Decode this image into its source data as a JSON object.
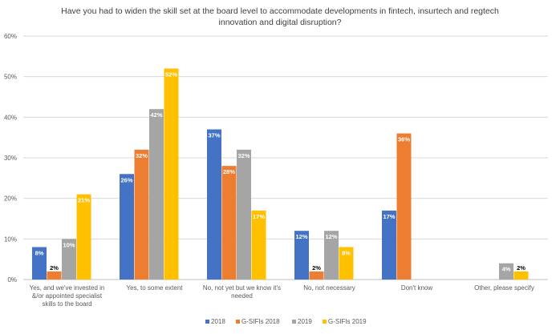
{
  "chart_data": {
    "type": "bar",
    "title_lines": [
      "Have you had to widen the skill set at the board level to accommodate developments in fintech, insurtech and regtech",
      "innovation and digital disruption?"
    ],
    "xlabel": "",
    "ylabel": "",
    "ylim": [
      0,
      60
    ],
    "yticks": [
      0,
      10,
      20,
      30,
      40,
      50,
      60
    ],
    "ytick_labels": [
      "0%",
      "10%",
      "20%",
      "30%",
      "40%",
      "50%",
      "60%"
    ],
    "grid": true,
    "legend_position": "bottom",
    "categories": [
      [
        "Yes, and we've invested in",
        "&/or appointed specialist",
        "skills to the board"
      ],
      [
        "Yes, to some extent"
      ],
      [
        "No, not yet but we know it's",
        "needed"
      ],
      [
        "No, not necessary"
      ],
      [
        "Don't know"
      ],
      [
        "Other, please specify"
      ]
    ],
    "series": [
      {
        "name": "2018",
        "color": "#4472c4",
        "values": [
          8,
          26,
          37,
          12,
          17,
          null
        ],
        "labels": [
          "8%",
          "26%",
          "37%",
          "12%",
          "17%",
          null
        ]
      },
      {
        "name": "G-SIFIs 2018",
        "color": "#ed7d31",
        "values": [
          2,
          32,
          28,
          2,
          36,
          null
        ],
        "labels": [
          "2%",
          "32%",
          "28%",
          "2%",
          "36%",
          null
        ]
      },
      {
        "name": "2019",
        "color": "#a5a5a5",
        "values": [
          10,
          42,
          32,
          12,
          null,
          4
        ],
        "labels": [
          "10%",
          "42%",
          "32%",
          "12%",
          null,
          "4%"
        ]
      },
      {
        "name": "G-SIFIs 2019",
        "color": "#ffc000",
        "values": [
          21,
          52,
          17,
          8,
          null,
          2
        ],
        "labels": [
          "21%",
          "52%",
          "17%",
          "8%",
          null,
          "2%"
        ]
      }
    ]
  }
}
